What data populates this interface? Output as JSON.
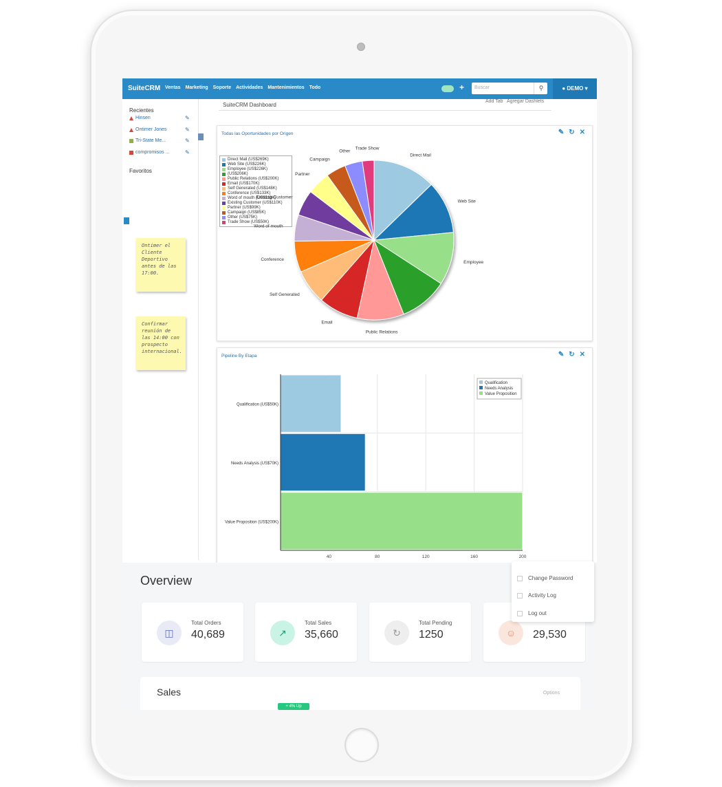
{
  "topnav": {
    "brand": "SuiteCRM",
    "menu": [
      "Ventas",
      "Marketing",
      "Soporte",
      "Actividades",
      "Mantenimientos",
      "Todo"
    ],
    "search_placeholder": "Buscar",
    "user": "DEMO"
  },
  "sidebar": {
    "recientes": "Recientes",
    "recent_items": [
      "Hinsen",
      "Ontimer Jones",
      "Tri-State Me...",
      "compromisos ..."
    ],
    "favoritos": "Favoritos",
    "note1": "Ontimer el Cliente Deportivo antes de las 17:00.",
    "note2": "Confirmar reunión de las 14:00 con prospecto internacional."
  },
  "dashboard": {
    "title": "SuiteCRM Dashboard",
    "add_tab": "Add Tab",
    "add_dashlets": "Agregar Dashlets"
  },
  "panel1": {
    "title": "Todas las Oportunidades por Origen",
    "icons": [
      "pencil-icon",
      "refresh-icon",
      "close-icon"
    ]
  },
  "panel2": {
    "title": "Pipeline By Etapa"
  },
  "chart_data": [
    {
      "type": "pie",
      "title": "Todas las Oportunidades por Origen",
      "slices": [
        {
          "label": "Direct Mail",
          "legend": "Direct Mail (US$269K)",
          "value": 269,
          "color": "#9ecae1"
        },
        {
          "label": "Web Site",
          "legend": "Web Site (US$226K)",
          "value": 226,
          "color": "#1f77b4"
        },
        {
          "label": "Employee",
          "legend": "Employee (US$226K)",
          "value": 226,
          "color": "#98df8a"
        },
        {
          "label": "",
          "legend": "(US$206K)",
          "value": 206,
          "color": "#2ca02c"
        },
        {
          "label": "Public Relations",
          "legend": "Public Relations (US$200K)",
          "value": 200,
          "color": "#ff9896"
        },
        {
          "label": "Email",
          "legend": "Email (US$170K)",
          "value": 170,
          "color": "#d62728"
        },
        {
          "label": "Self Generated",
          "legend": "Self Generated (US$148K)",
          "value": 148,
          "color": "#ffbb78"
        },
        {
          "label": "Conference",
          "legend": "Conference (US$133K)",
          "value": 133,
          "color": "#ff7f0e"
        },
        {
          "label": "Word of mouth",
          "legend": "Word of mouth (US$113K)",
          "value": 113,
          "color": "#c5b0d5"
        },
        {
          "label": "Existing Customer",
          "legend": "Existing Customer (US$110K)",
          "value": 110,
          "color": "#6f3e9e"
        },
        {
          "label": "Partner",
          "legend": "Partner (US$99K)",
          "value": 99,
          "color": "#ffff8a"
        },
        {
          "label": "Campaign",
          "legend": "Campaign (US$85K)",
          "value": 85,
          "color": "#c65a1e"
        },
        {
          "label": "Other",
          "legend": "Other (US$75K)",
          "value": 75,
          "color": "#8c8cff"
        },
        {
          "label": "Trade Show",
          "legend": "Trade Show (US$50K)",
          "value": 50,
          "color": "#e03a7b"
        }
      ]
    },
    {
      "type": "bar",
      "orientation": "horizontal",
      "title": "Pipeline By Etapa",
      "categories": [
        "Qualification (US$50K)",
        "Needs Analysis (US$70K)",
        "Value Proposition (US$200K)"
      ],
      "values": [
        50,
        70,
        200
      ],
      "colors": [
        "#9ecae1",
        "#1f77b4",
        "#98df8a"
      ],
      "legend": [
        "Qualification",
        "Needs Analysis",
        "Value Proposition"
      ],
      "xticks": [
        "40",
        "80",
        "120",
        "160",
        "200"
      ],
      "xlim": [
        0,
        200
      ]
    }
  ],
  "overview": {
    "title": "Overview",
    "cards": [
      {
        "label": "Total Orders",
        "value": "40,689",
        "icon": "box-icon",
        "color": "#e8eaf6"
      },
      {
        "label": "Total Sales",
        "value": "35,660",
        "icon": "chart-icon",
        "color": "#c9f3e4"
      },
      {
        "label": "Total Pending",
        "value": "1250",
        "icon": "refresh-icon",
        "color": "#eeeeee"
      },
      {
        "label": "",
        "value": "29,530",
        "icon": "user-icon",
        "color": "#fbe6dd"
      }
    ]
  },
  "sales": {
    "title": "Sales",
    "options": "Options",
    "badge": "+ 4% Up"
  },
  "user_menu": {
    "items": [
      "Change Password",
      "Activity Log",
      "Log out"
    ]
  }
}
